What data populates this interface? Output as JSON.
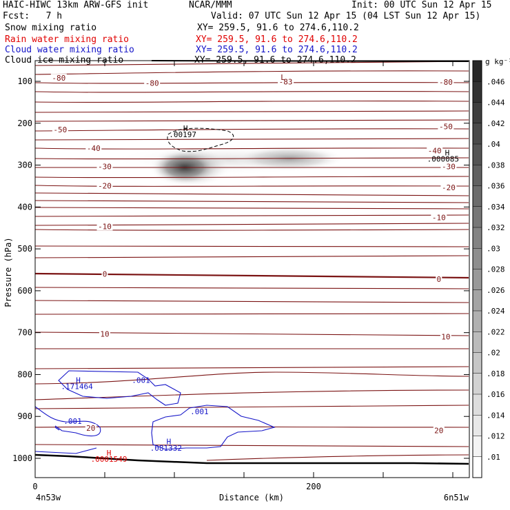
{
  "header": {
    "title_left": "HAIC-HIWC 13km ARW-GFS init",
    "org": "NCAR/MMM",
    "init": "Init: 00 UTC Sun 12 Apr 15",
    "fcst": "Fcst:   7 h",
    "valid": "Valid: 07 UTC Sun 12 Apr 15 (04 LST Sun 12 Apr 15)"
  },
  "fields": [
    {
      "name": "Snow mixing ratio",
      "xy": "XY= 259.5, 91.6 to 274.6,110.2",
      "color": "#000000"
    },
    {
      "name": "Rain water mixing ratio",
      "xy": "XY= 259.5, 91.6 to 274.6,110.2",
      "color": "#e00000"
    },
    {
      "name": "Cloud water mixing ratio",
      "xy": "XY= 259.5, 91.6 to 274.6,110.2",
      "color": "#1414c8"
    },
    {
      "name": "Cloud ice mixing ratio",
      "xy": "XY= 259.5, 91.6 to 274.6,110.2",
      "color": "#000000"
    }
  ],
  "chart_data": {
    "type": "cross-section",
    "xlabel": "Distance (km)",
    "ylabel": "Pressure (hPa)",
    "xlim": [
      0,
      300
    ],
    "ylim": [
      1050,
      75
    ],
    "x_ticks": [
      {
        "value": 0,
        "label": "0"
      },
      {
        "value": 200,
        "label": "200"
      }
    ],
    "x_minor_ticks": [
      50,
      100,
      150,
      250,
      300
    ],
    "y_ticks": [
      100,
      200,
      300,
      400,
      500,
      600,
      700,
      800,
      900,
      1000
    ],
    "endpoint_left": "4n53w",
    "endpoint_right": "6n51w",
    "colorbar": {
      "unit": "g kg⁻¹",
      "levels": [
        0.01,
        0.012,
        0.014,
        0.016,
        0.018,
        0.02,
        0.022,
        0.024,
        0.026,
        0.028,
        0.03,
        0.032,
        0.034,
        0.036,
        0.038,
        0.04,
        0.042,
        0.044,
        0.046
      ],
      "labels": [
        ".01",
        ".012",
        ".014",
        ".016",
        ".018",
        ".02",
        ".022",
        ".024",
        ".026",
        ".028",
        ".03",
        ".032",
        ".034",
        ".036",
        ".038",
        ".04",
        ".042",
        ".044",
        ".046"
      ]
    },
    "temperature_contour_labels": [
      {
        "text": "-80",
        "x": 17,
        "p": 92
      },
      {
        "text": "-80",
        "x": 84,
        "p": 104
      },
      {
        "text": "-83",
        "x": 180,
        "p": 101
      },
      {
        "text": "-80",
        "x": 295,
        "p": 102
      },
      {
        "text": "-50",
        "x": 18,
        "p": 215
      },
      {
        "text": "-50",
        "x": 295,
        "p": 208
      },
      {
        "text": "-40",
        "x": 42,
        "p": 260
      },
      {
        "text": "-40",
        "x": 287,
        "p": 265
      },
      {
        "text": "-30",
        "x": 50,
        "p": 303
      },
      {
        "text": "-30",
        "x": 297,
        "p": 303
      },
      {
        "text": "-20",
        "x": 50,
        "p": 349
      },
      {
        "text": "-20",
        "x": 297,
        "p": 353
      },
      {
        "text": "-10",
        "x": 50,
        "p": 446
      },
      {
        "text": "-10",
        "x": 290,
        "p": 425
      },
      {
        "text": "0",
        "x": 50,
        "p": 560
      },
      {
        "text": "0",
        "x": 290,
        "p": 572
      },
      {
        "text": "10",
        "x": 50,
        "p": 703
      },
      {
        "text": "10",
        "x": 295,
        "p": 710
      },
      {
        "text": "20",
        "x": 40,
        "p": 928
      },
      {
        "text": "20",
        "x": 290,
        "p": 933
      }
    ],
    "extrema_labels": [
      {
        "text": "L",
        "x": 178,
        "p": 90,
        "color": "#7a1212"
      },
      {
        "text": "H",
        "x": 108,
        "p": 212,
        "color": "#000000"
      },
      {
        "text": ".00197",
        "x": 106,
        "p": 227,
        "color": "#000000"
      },
      {
        "text": "H",
        "x": 296,
        "p": 270,
        "color": "#000000"
      },
      {
        "text": ".000085",
        "x": 293,
        "p": 285,
        "color": "#000000"
      },
      {
        "text": "H",
        "x": 31,
        "p": 813,
        "color": "#1414c8"
      },
      {
        "text": ".171464",
        "x": 30,
        "p": 828,
        "color": "#1414c8"
      },
      {
        "text": ".001",
        "x": 76,
        "p": 813,
        "color": "#1414c8"
      },
      {
        "text": ".001",
        "x": 27,
        "p": 911,
        "color": "#1414c8"
      },
      {
        "text": ".001",
        "x": 118,
        "p": 888,
        "color": "#1414c8"
      },
      {
        "text": "H",
        "x": 96,
        "p": 960,
        "color": "#1414c8"
      },
      {
        "text": ".081332",
        "x": 94,
        "p": 975,
        "color": "#1414c8"
      },
      {
        "text": "H",
        "x": 53,
        "p": 987,
        "color": "#e00000"
      },
      {
        "text": ".0001549",
        "x": 53,
        "p": 1002,
        "color": "#e00000"
      }
    ]
  }
}
